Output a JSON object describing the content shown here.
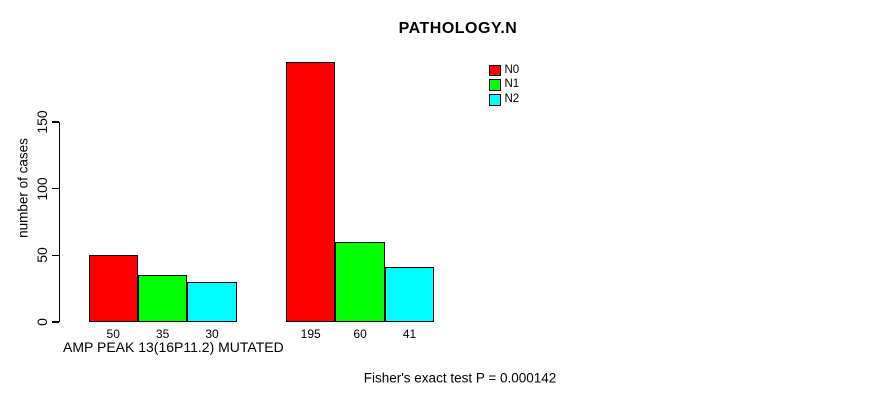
{
  "chart_data": {
    "type": "bar",
    "title": "PATHOLOGY.N",
    "ylabel": "number of cases",
    "xlabel": "AMP PEAK 13(16P11.2) MUTATED",
    "footnote": "Fisher's exact test P = 0.000142",
    "yticks": [
      0,
      50,
      100,
      150
    ],
    "ylim": [
      0,
      200
    ],
    "grid": false,
    "legend_position": "top-right",
    "groups": 2,
    "series": [
      {
        "name": "N0",
        "color": "#FF0000",
        "values": [
          50,
          195
        ]
      },
      {
        "name": "N1",
        "color": "#00FF00",
        "values": [
          35,
          60
        ]
      },
      {
        "name": "N2",
        "color": "#00FFFF",
        "values": [
          30,
          41
        ]
      }
    ],
    "bar_value_labels": [
      [
        50,
        35,
        30
      ],
      [
        195,
        60,
        41
      ]
    ]
  },
  "legend": {
    "items": [
      {
        "label": "N0",
        "color": "#FF0000"
      },
      {
        "label": "N1",
        "color": "#00FF00"
      },
      {
        "label": "N2",
        "color": "#00FFFF"
      }
    ]
  }
}
